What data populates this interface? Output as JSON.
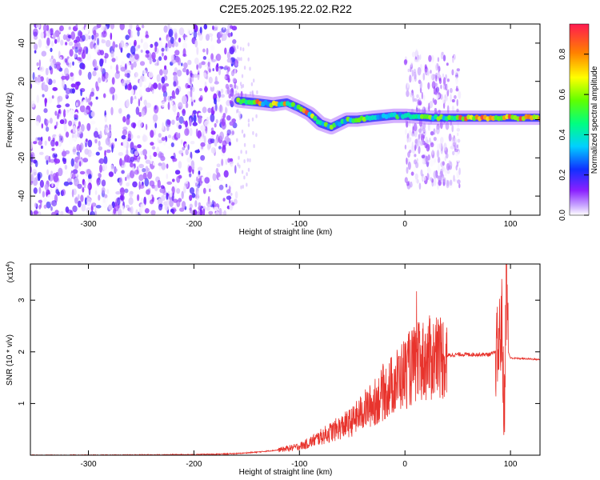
{
  "page_title": "C2E5.2025.195.22.02.R22",
  "chart_data": [
    {
      "type": "heatmap",
      "title": "C2E5.2025.195.22.02.R22",
      "xlabel": "Height of straight line (km)",
      "ylabel": "Frequency (Hz)",
      "xlim": [
        -355,
        128
      ],
      "ylim": [
        -50,
        50
      ],
      "xticks": [
        -300,
        -200,
        -100,
        0,
        100
      ],
      "xtick_labels": [
        "-300",
        "-200",
        "-100",
        "0",
        "100"
      ],
      "yticks": [
        -40,
        -20,
        0,
        20,
        40
      ],
      "ytick_labels": [
        "-40",
        "-20",
        "0",
        "20",
        "40"
      ],
      "colorbar": {
        "label": "Normalized spectral amplitude",
        "range": [
          0,
          0.95
        ],
        "ticks": [
          0.0,
          0.2,
          0.4,
          0.6,
          0.8
        ],
        "tick_labels": [
          "0.0",
          "0.2",
          "0.4",
          "0.6",
          "0.8"
        ],
        "colormap": "rainbow-white-purple-red"
      },
      "features": {
        "noise_region_x": [
          -355,
          -160
        ],
        "ridge": [
          {
            "x": -158,
            "y": 10
          },
          {
            "x": -140,
            "y": 9
          },
          {
            "x": -125,
            "y": 8
          },
          {
            "x": -112,
            "y": 9
          },
          {
            "x": -100,
            "y": 6
          },
          {
            "x": -90,
            "y": 3
          },
          {
            "x": -80,
            "y": -2
          },
          {
            "x": -70,
            "y": -4
          },
          {
            "x": -55,
            "y": 0
          },
          {
            "x": -45,
            "y": 0
          },
          {
            "x": -30,
            "y": 1
          },
          {
            "x": -10,
            "y": 2
          },
          {
            "x": 0,
            "y": 2
          },
          {
            "x": 25,
            "y": 1
          },
          {
            "x": 50,
            "y": 1
          },
          {
            "x": 90,
            "y": 1
          },
          {
            "x": 128,
            "y": 1
          }
        ],
        "broadband_region_x": [
          0,
          52
        ],
        "strong_segment_x": [
          52,
          128
        ]
      }
    },
    {
      "type": "line",
      "xlabel": "Height of straight line (km)",
      "ylabel": "SNR (10 * v/v)",
      "y_multiplier_label": "(x10",
      "y_multiplier_exp": "4",
      "y_multiplier_close": ")",
      "xlim": [
        -355,
        128
      ],
      "ylim": [
        0,
        3.7
      ],
      "xticks": [
        -300,
        -200,
        -100,
        0,
        100
      ],
      "xtick_labels": [
        "-300",
        "-200",
        "-100",
        "0",
        "100"
      ],
      "yticks": [
        1,
        2,
        3
      ],
      "ytick_labels": [
        "1",
        "2",
        "3"
      ],
      "color": "#e8332c",
      "series": [
        {
          "x": [
            -355,
            -300,
            -200,
            -160,
            -140,
            -120,
            -105,
            -95,
            -85,
            -70,
            -60,
            -50,
            -40,
            -30,
            -20,
            -10,
            0,
            10,
            20,
            30,
            40,
            50,
            60,
            70,
            80,
            88,
            92,
            94,
            96,
            98,
            100,
            110,
            120,
            128
          ],
          "y": [
            0.0,
            0.0,
            0.01,
            0.03,
            0.06,
            0.1,
            0.15,
            0.2,
            0.3,
            0.45,
            0.55,
            0.65,
            0.85,
            1.0,
            1.2,
            1.4,
            1.6,
            1.75,
            1.85,
            1.9,
            1.93,
            1.95,
            1.95,
            1.95,
            1.95,
            2.0,
            2.6,
            0.5,
            3.7,
            2.0,
            1.88,
            1.87,
            1.86,
            1.85
          ]
        }
      ]
    }
  ]
}
